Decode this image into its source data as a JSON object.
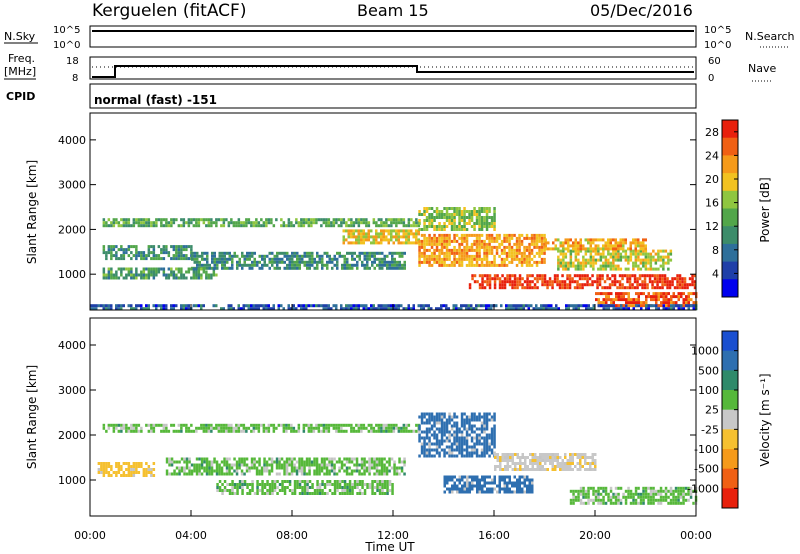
{
  "header": {
    "station": "Kerguelen (fitACF)",
    "beam": "Beam 15",
    "date": "05/Dec/2016"
  },
  "strip": {
    "nsky_label": "N.Sky",
    "nsky_ticks": [
      "10^5",
      "10^0"
    ],
    "nsearch_label": "N.Search",
    "nsearch_ticks": [
      "10^5",
      "10^0"
    ],
    "freq_label": "Freq.",
    "freq_unit": "[MHz]",
    "freq_ticks": [
      "18",
      "8"
    ],
    "nave_label": "Nave",
    "nave_ticks": [
      "60",
      "0"
    ],
    "cpid_label": "CPID",
    "cpid_value": "normal (fast) -151"
  },
  "colors": {
    "power_scale": [
      "#0000ee",
      "#1f3fa8",
      "#2e6f9a",
      "#3c8c6a",
      "#52a64a",
      "#8fc640",
      "#f2c220",
      "#f59a1a",
      "#f06014",
      "#e8200c"
    ],
    "velocity_scale": [
      "#1a4fd0",
      "#2e6fb0",
      "#2f8a6a",
      "#56b83a",
      "#c8c8c8",
      "#f5c030",
      "#f59a1a",
      "#f06014",
      "#e8200c"
    ],
    "velocity_bg": "#c4c4c4"
  },
  "chart_data": [
    {
      "type": "heatmap",
      "name": "power",
      "xlabel": "Time UT",
      "ylabel": "Slant Range [km]",
      "x_ticks": [
        "00:00",
        "04:00",
        "08:00",
        "12:00",
        "16:00",
        "20:00",
        "00:00"
      ],
      "y_ticks": [
        "1000",
        "2000",
        "3000",
        "4000"
      ],
      "ylim": [
        200,
        4600
      ],
      "colorbar_label": "Power [dB]",
      "colorbar_ticks": [
        "4",
        "8",
        "12",
        "16",
        "20",
        "24",
        "28"
      ],
      "colorbar_range": [
        0,
        30
      ],
      "bands": [
        {
          "t0": 0.5,
          "t1": 13.0,
          "r0": 2050,
          "r1": 2250,
          "level": 13
        },
        {
          "t0": 0.5,
          "t1": 4.0,
          "r0": 1350,
          "r1": 1650,
          "level": 11
        },
        {
          "t0": 4.0,
          "t1": 12.5,
          "r0": 1150,
          "r1": 1500,
          "level": 10
        },
        {
          "t0": 0.5,
          "t1": 5.0,
          "r0": 900,
          "r1": 1150,
          "level": 12
        },
        {
          "t0": 10.0,
          "t1": 13.0,
          "r0": 1700,
          "r1": 2000,
          "level": 20
        },
        {
          "t0": 13.0,
          "t1": 18.0,
          "r0": 1200,
          "r1": 1900,
          "level": 22
        },
        {
          "t0": 13.0,
          "t1": 16.0,
          "r0": 2000,
          "r1": 2500,
          "level": 16
        },
        {
          "t0": 15.0,
          "t1": 24.0,
          "r0": 700,
          "r1": 1000,
          "level": 28
        },
        {
          "t0": 20.0,
          "t1": 24.0,
          "r0": 300,
          "r1": 600,
          "level": 26
        },
        {
          "t0": 18.5,
          "t1": 23.0,
          "r0": 1100,
          "r1": 1550,
          "level": 18
        },
        {
          "t0": 18.0,
          "t1": 22.0,
          "r0": 1550,
          "r1": 1800,
          "level": 21
        },
        {
          "t0": 0.0,
          "t1": 24.0,
          "r0": 250,
          "r1": 330,
          "level": 6
        }
      ]
    },
    {
      "type": "heatmap",
      "name": "velocity",
      "xlabel": "Time UT",
      "ylabel": "Slant Range [km]",
      "x_ticks": [
        "00:00",
        "04:00",
        "08:00",
        "12:00",
        "16:00",
        "20:00",
        "00:00"
      ],
      "y_ticks": [
        "1000",
        "2000",
        "3000",
        "4000"
      ],
      "ylim": [
        200,
        4600
      ],
      "colorbar_label": "Velocity [m s⁻¹]",
      "colorbar_ticks": [
        "1000",
        "500",
        "100",
        "25",
        "-25",
        "-100",
        "-500",
        "-1000"
      ],
      "bands": [
        {
          "t0": 0.5,
          "t1": 13.0,
          "r0": 2050,
          "r1": 2250,
          "level": 0
        },
        {
          "t0": 0.3,
          "t1": 2.5,
          "r0": 1100,
          "r1": 1400,
          "level": -300
        },
        {
          "t0": 3.0,
          "t1": 12.5,
          "r0": 1150,
          "r1": 1500,
          "level": 0
        },
        {
          "t0": 13.0,
          "t1": 16.0,
          "r0": 1500,
          "r1": 2500,
          "level": 200
        },
        {
          "t0": 14.0,
          "t1": 17.5,
          "r0": 700,
          "r1": 1100,
          "level": 150
        },
        {
          "t0": 16.0,
          "t1": 20.0,
          "r0": 1200,
          "r1": 1600,
          "level": -80
        },
        {
          "t0": 19.0,
          "t1": 24.0,
          "r0": 450,
          "r1": 850,
          "level": 0
        },
        {
          "t0": 5.0,
          "t1": 12.0,
          "r0": 700,
          "r1": 1000,
          "level": 0
        }
      ]
    }
  ]
}
